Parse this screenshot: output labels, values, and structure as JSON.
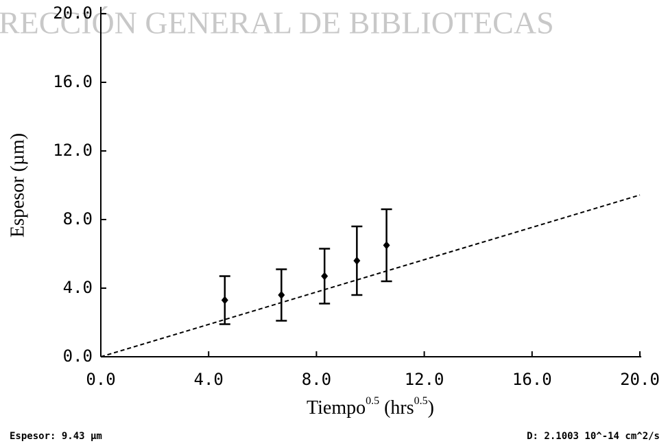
{
  "watermark": "RECCIÓN GENERAL DE BIBLIOTECAS",
  "chart_data": {
    "type": "scatter",
    "xlabel_parts": [
      "Tiempo",
      "0.5",
      " (hrs",
      "0.5",
      ")"
    ],
    "ylabel": "Espesor  (µm)",
    "xlim": [
      0,
      20
    ],
    "ylim": [
      0,
      20
    ],
    "xticks": [
      {
        "value": 0,
        "label": "0.0"
      },
      {
        "value": 4,
        "label": "4.0"
      },
      {
        "value": 8,
        "label": "8.0"
      },
      {
        "value": 12,
        "label": "12.0"
      },
      {
        "value": 16,
        "label": "16.0"
      },
      {
        "value": 20,
        "label": "20.0"
      }
    ],
    "yticks": [
      {
        "value": 0,
        "label": "0.0"
      },
      {
        "value": 4,
        "label": "4.0"
      },
      {
        "value": 8,
        "label": "8.0"
      },
      {
        "value": 12,
        "label": "12.0"
      },
      {
        "value": 16,
        "label": "16.0"
      },
      {
        "value": 20,
        "label": "20.0"
      }
    ],
    "series": [
      {
        "x": [
          4.6,
          6.7,
          8.3,
          9.5,
          10.6
        ],
        "values": [
          3.3,
          3.6,
          4.7,
          5.6,
          6.5
        ],
        "errors": [
          1.4,
          1.5,
          1.6,
          2.0,
          2.1
        ],
        "color": "#000000"
      },
      {
        "x": [
          0,
          20
        ],
        "values": [
          0,
          9.43
        ],
        "color": "#000000",
        "dashed": true
      }
    ]
  },
  "footer": {
    "left": "Espesor: 9.43 µm",
    "right": "D: 2.1003 10^-14 cm^2/s"
  }
}
